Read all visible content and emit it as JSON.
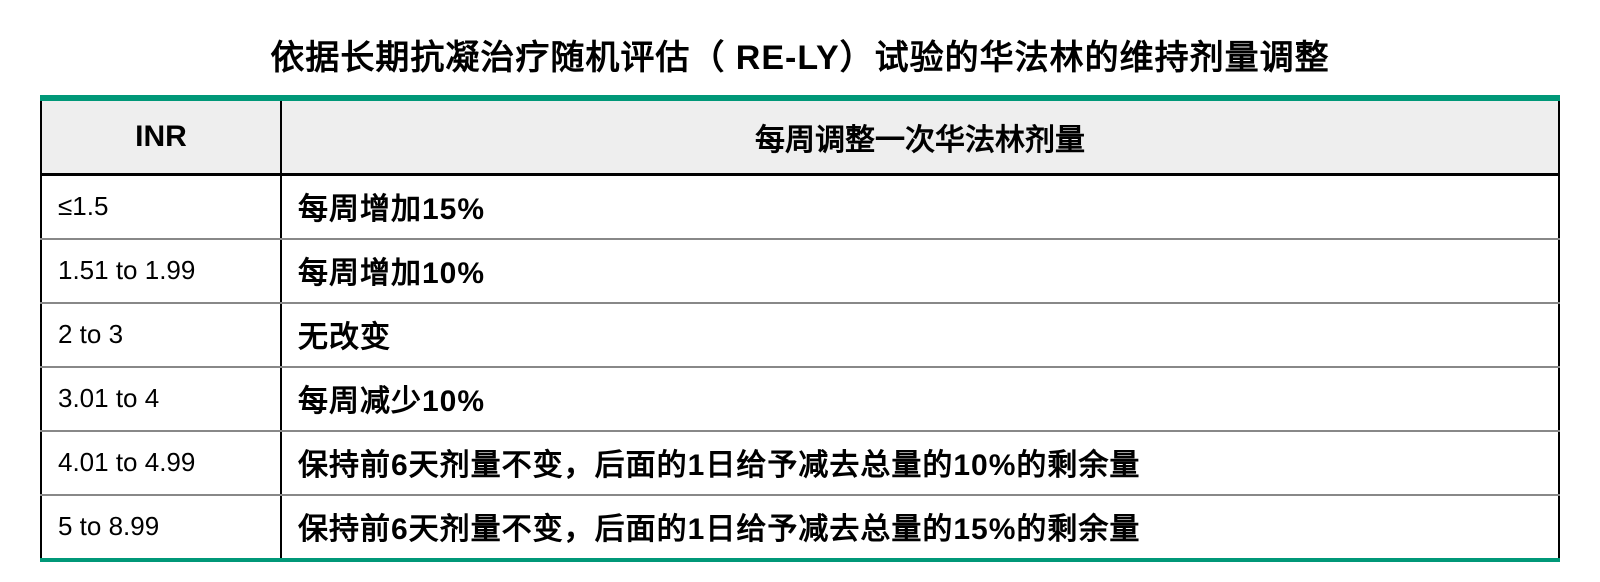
{
  "title": "依据长期抗凝治疗随机评估（ RE-LY）试验的华法林的维持剂量调整",
  "accent_color": "#009878",
  "header_bg_color": "#eeeeee",
  "columns": [
    "INR",
    "每周调整一次华法林剂量"
  ],
  "rows": [
    {
      "inr": "≤1.5",
      "adjustment": "每周增加15%"
    },
    {
      "inr": "1.51 to 1.99",
      "adjustment": "每周增加10%"
    },
    {
      "inr": "2 to 3",
      "adjustment": " 无改变"
    },
    {
      "inr": "3.01 to 4",
      "adjustment": "每周减少10%"
    },
    {
      "inr": "4.01 to 4.99",
      "adjustment": "保持前6天剂量不变，后面的1日给予减去总量的10%的剩余量"
    },
    {
      "inr": "5 to 8.99",
      "adjustment": "保持前6天剂量不变，后面的1日给予减去总量的15%的剩余量"
    }
  ]
}
